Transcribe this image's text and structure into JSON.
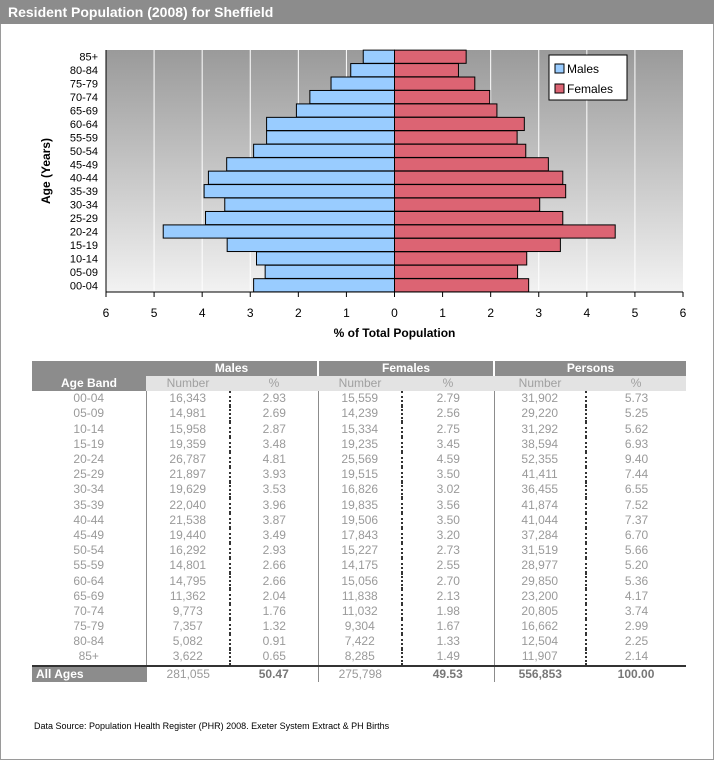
{
  "title": "Resident Population (2008) for Sheffield",
  "chart_data": {
    "type": "bar",
    "orientation": "horizontal",
    "layout": "population-pyramid",
    "categories": [
      "85+",
      "80-84",
      "75-79",
      "70-74",
      "65-69",
      "60-64",
      "55-59",
      "50-54",
      "45-49",
      "40-44",
      "35-39",
      "30-34",
      "25-29",
      "20-24",
      "15-19",
      "10-14",
      "05-09",
      "00-04"
    ],
    "series": [
      {
        "name": "Males",
        "color": "#99ccff",
        "values": [
          0.65,
          0.91,
          1.32,
          1.76,
          2.04,
          2.66,
          2.66,
          2.93,
          3.49,
          3.87,
          3.96,
          3.53,
          3.93,
          4.81,
          3.48,
          2.87,
          2.69,
          2.93
        ]
      },
      {
        "name": "Females",
        "color": "#dc6473",
        "values": [
          1.49,
          1.33,
          1.67,
          1.98,
          2.13,
          2.7,
          2.55,
          2.73,
          3.2,
          3.5,
          3.56,
          3.02,
          3.5,
          4.59,
          3.45,
          2.75,
          2.56,
          2.79
        ]
      }
    ],
    "xlabel": "% of Total Population",
    "ylabel": "Age (Years)",
    "xlim": [
      -6,
      6
    ],
    "xticks": [
      "6",
      "5",
      "4",
      "3",
      "2",
      "1",
      "0",
      "1",
      "2",
      "3",
      "4",
      "5",
      "6"
    ],
    "legend": "top-right",
    "grid": true
  },
  "table": {
    "groups": [
      "Males",
      "Females",
      "Persons"
    ],
    "age_band_header": "Age Band",
    "number_header": "Number",
    "pct_header": "%",
    "rows": [
      {
        "age": "00-04",
        "m_num": "16,343",
        "m_pct": "2.93",
        "f_num": "15,559",
        "f_pct": "2.79",
        "p_num": "31,902",
        "p_pct": "5.73"
      },
      {
        "age": "05-09",
        "m_num": "14,981",
        "m_pct": "2.69",
        "f_num": "14,239",
        "f_pct": "2.56",
        "p_num": "29,220",
        "p_pct": "5.25"
      },
      {
        "age": "10-14",
        "m_num": "15,958",
        "m_pct": "2.87",
        "f_num": "15,334",
        "f_pct": "2.75",
        "p_num": "31,292",
        "p_pct": "5.62"
      },
      {
        "age": "15-19",
        "m_num": "19,359",
        "m_pct": "3.48",
        "f_num": "19,235",
        "f_pct": "3.45",
        "p_num": "38,594",
        "p_pct": "6.93"
      },
      {
        "age": "20-24",
        "m_num": "26,787",
        "m_pct": "4.81",
        "f_num": "25,569",
        "f_pct": "4.59",
        "p_num": "52,355",
        "p_pct": "9.40"
      },
      {
        "age": "25-29",
        "m_num": "21,897",
        "m_pct": "3.93",
        "f_num": "19,515",
        "f_pct": "3.50",
        "p_num": "41,411",
        "p_pct": "7.44"
      },
      {
        "age": "30-34",
        "m_num": "19,629",
        "m_pct": "3.53",
        "f_num": "16,826",
        "f_pct": "3.02",
        "p_num": "36,455",
        "p_pct": "6.55"
      },
      {
        "age": "35-39",
        "m_num": "22,040",
        "m_pct": "3.96",
        "f_num": "19,835",
        "f_pct": "3.56",
        "p_num": "41,874",
        "p_pct": "7.52"
      },
      {
        "age": "40-44",
        "m_num": "21,538",
        "m_pct": "3.87",
        "f_num": "19,506",
        "f_pct": "3.50",
        "p_num": "41,044",
        "p_pct": "7.37"
      },
      {
        "age": "45-49",
        "m_num": "19,440",
        "m_pct": "3.49",
        "f_num": "17,843",
        "f_pct": "3.20",
        "p_num": "37,284",
        "p_pct": "6.70"
      },
      {
        "age": "50-54",
        "m_num": "16,292",
        "m_pct": "2.93",
        "f_num": "15,227",
        "f_pct": "2.73",
        "p_num": "31,519",
        "p_pct": "5.66"
      },
      {
        "age": "55-59",
        "m_num": "14,801",
        "m_pct": "2.66",
        "f_num": "14,175",
        "f_pct": "2.55",
        "p_num": "28,977",
        "p_pct": "5.20"
      },
      {
        "age": "60-64",
        "m_num": "14,795",
        "m_pct": "2.66",
        "f_num": "15,056",
        "f_pct": "2.70",
        "p_num": "29,850",
        "p_pct": "5.36"
      },
      {
        "age": "65-69",
        "m_num": "11,362",
        "m_pct": "2.04",
        "f_num": "11,838",
        "f_pct": "2.13",
        "p_num": "23,200",
        "p_pct": "4.17"
      },
      {
        "age": "70-74",
        "m_num": "9,773",
        "m_pct": "1.76",
        "f_num": "11,032",
        "f_pct": "1.98",
        "p_num": "20,805",
        "p_pct": "3.74"
      },
      {
        "age": "75-79",
        "m_num": "7,357",
        "m_pct": "1.32",
        "f_num": "9,304",
        "f_pct": "1.67",
        "p_num": "16,662",
        "p_pct": "2.99"
      },
      {
        "age": "80-84",
        "m_num": "5,082",
        "m_pct": "0.91",
        "f_num": "7,422",
        "f_pct": "1.33",
        "p_num": "12,504",
        "p_pct": "2.25"
      },
      {
        "age": "85+",
        "m_num": "3,622",
        "m_pct": "0.65",
        "f_num": "8,285",
        "f_pct": "1.49",
        "p_num": "11,907",
        "p_pct": "2.14"
      }
    ],
    "total": {
      "age": "All Ages",
      "m_num": "281,055",
      "m_pct": "50.47",
      "f_num": "275,798",
      "f_pct": "49.53",
      "p_num": "556,853",
      "p_pct": "100.00"
    }
  },
  "source": "Data Source: Population Health Register (PHR) 2008. Exeter System Extract & PH Births"
}
